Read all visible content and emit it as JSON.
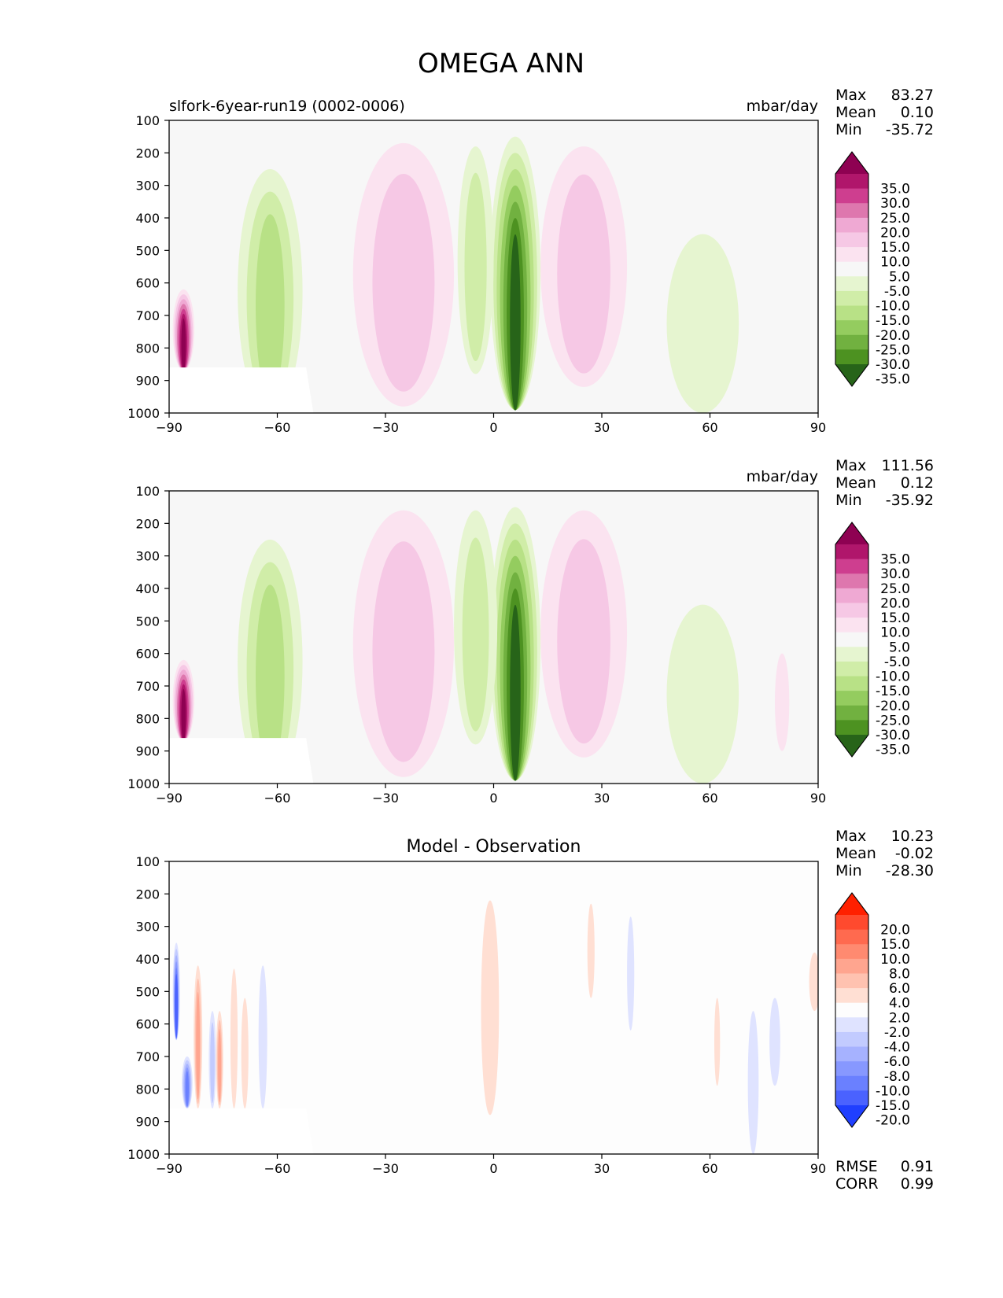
{
  "figure_title": "OMEGA ANN",
  "stat_labels": {
    "max": "Max",
    "mean": "Mean",
    "min": "Min",
    "rmse": "RMSE",
    "corr": "CORR"
  },
  "chart_data": [
    {
      "type": "heatmap",
      "panel": "model",
      "title": "",
      "left_title": "slfork-6year-run19 (0002-0006)",
      "units": "mbar/day",
      "xlabel": "",
      "ylabel": "",
      "xlim": [
        -90,
        90
      ],
      "ylim": [
        1000,
        100
      ],
      "xticks": [
        "−90",
        "−60",
        "−30",
        "0",
        "30",
        "60",
        "90"
      ],
      "xtick_values": [
        -90,
        -60,
        -30,
        0,
        30,
        60,
        90
      ],
      "yticks": [
        "100",
        "200",
        "300",
        "400",
        "500",
        "600",
        "700",
        "800",
        "900",
        "1000"
      ],
      "ytick_values": [
        100,
        200,
        300,
        400,
        500,
        600,
        700,
        800,
        900,
        1000
      ],
      "stats": {
        "max": "83.27",
        "mean": "0.10",
        "min": "-35.72"
      },
      "colorbar": {
        "labels": [
          "35.0",
          "30.0",
          "25.0",
          "20.0",
          "15.0",
          "10.0",
          "5.0",
          "-5.0",
          "-10.0",
          "-15.0",
          "-20.0",
          "-25.0",
          "-30.0",
          "-35.0"
        ],
        "colors": [
          "#8e0152",
          "#b0166b",
          "#ce3e8f",
          "#de77ae",
          "#efa9d3",
          "#f6c8e5",
          "#fbe3f0",
          "#f7f7f7",
          "#e6f5d0",
          "#d0eda8",
          "#b8e186",
          "#94cc5f",
          "#71b140",
          "#4d9221",
          "#276419"
        ]
      },
      "features": [
        {
          "lat": 6,
          "plev": 700,
          "value": -35,
          "lat_halfwidth": 7,
          "plev_top": 150,
          "plev_bottom": 990
        },
        {
          "lat": -25,
          "plev": 600,
          "value": 12,
          "lat_halfwidth": 14,
          "plev_top": 170,
          "plev_bottom": 980
        },
        {
          "lat": 25,
          "plev": 600,
          "value": 10,
          "lat_halfwidth": 12,
          "plev_top": 180,
          "plev_bottom": 920
        },
        {
          "lat": -62,
          "plev": 650,
          "value": -18,
          "lat_halfwidth": 9,
          "plev_top": 250,
          "plev_bottom": 1000
        },
        {
          "lat": -5,
          "plev": 650,
          "value": -12,
          "lat_halfwidth": 5,
          "plev_top": 180,
          "plev_bottom": 880
        },
        {
          "lat": -86,
          "plev": 800,
          "value": 35,
          "lat_halfwidth": 3,
          "plev_top": 620,
          "plev_bottom": 870
        },
        {
          "lat": 58,
          "plev": 800,
          "value": -7,
          "lat_halfwidth": 10,
          "plev_top": 450,
          "plev_bottom": 1000
        }
      ]
    },
    {
      "type": "heatmap",
      "panel": "observation",
      "title": "",
      "left_title": "",
      "units": "mbar/day",
      "xlabel": "",
      "ylabel": "",
      "xlim": [
        -90,
        90
      ],
      "ylim": [
        1000,
        100
      ],
      "xticks": [
        "−90",
        "−60",
        "−30",
        "0",
        "30",
        "60",
        "90"
      ],
      "xtick_values": [
        -90,
        -60,
        -30,
        0,
        30,
        60,
        90
      ],
      "yticks": [
        "100",
        "200",
        "300",
        "400",
        "500",
        "600",
        "700",
        "800",
        "900",
        "1000"
      ],
      "ytick_values": [
        100,
        200,
        300,
        400,
        500,
        600,
        700,
        800,
        900,
        1000
      ],
      "stats": {
        "max": "111.56",
        "mean": "0.12",
        "min": "-35.92"
      },
      "colorbar": {
        "labels": [
          "35.0",
          "30.0",
          "25.0",
          "20.0",
          "15.0",
          "10.0",
          "5.0",
          "-5.0",
          "-10.0",
          "-15.0",
          "-20.0",
          "-25.0",
          "-30.0",
          "-35.0"
        ],
        "colors": [
          "#8e0152",
          "#b0166b",
          "#ce3e8f",
          "#de77ae",
          "#efa9d3",
          "#f6c8e5",
          "#fbe3f0",
          "#f7f7f7",
          "#e6f5d0",
          "#d0eda8",
          "#b8e186",
          "#94cc5f",
          "#71b140",
          "#4d9221",
          "#276419"
        ]
      },
      "features": [
        {
          "lat": 6,
          "plev": 700,
          "value": -35,
          "lat_halfwidth": 7,
          "plev_top": 150,
          "plev_bottom": 990
        },
        {
          "lat": -25,
          "plev": 600,
          "value": 12,
          "lat_halfwidth": 14,
          "plev_top": 160,
          "plev_bottom": 980
        },
        {
          "lat": 25,
          "plev": 600,
          "value": 10,
          "lat_halfwidth": 12,
          "plev_top": 160,
          "plev_bottom": 920
        },
        {
          "lat": -62,
          "plev": 650,
          "value": -18,
          "lat_halfwidth": 9,
          "plev_top": 250,
          "plev_bottom": 1000
        },
        {
          "lat": -5,
          "plev": 600,
          "value": -12,
          "lat_halfwidth": 6,
          "plev_top": 160,
          "plev_bottom": 880
        },
        {
          "lat": -86,
          "plev": 800,
          "value": 35,
          "lat_halfwidth": 3,
          "plev_top": 620,
          "plev_bottom": 870
        },
        {
          "lat": 58,
          "plev": 800,
          "value": -7,
          "lat_halfwidth": 10,
          "plev_top": 450,
          "plev_bottom": 1000
        },
        {
          "lat": 80,
          "plev": 750,
          "value": 7,
          "lat_halfwidth": 2,
          "plev_top": 600,
          "plev_bottom": 900
        }
      ]
    },
    {
      "type": "heatmap",
      "panel": "difference",
      "title": "Model - Observation",
      "left_title": "",
      "units": "",
      "xlabel": "",
      "ylabel": "",
      "xlim": [
        -90,
        90
      ],
      "ylim": [
        1000,
        100
      ],
      "xticks": [
        "−90",
        "−60",
        "−30",
        "0",
        "30",
        "60",
        "90"
      ],
      "xtick_values": [
        -90,
        -60,
        -30,
        0,
        30,
        60,
        90
      ],
      "yticks": [
        "100",
        "200",
        "300",
        "400",
        "500",
        "600",
        "700",
        "800",
        "900",
        "1000"
      ],
      "ytick_values": [
        100,
        200,
        300,
        400,
        500,
        600,
        700,
        800,
        900,
        1000
      ],
      "stats": {
        "max": "10.23",
        "mean": "-0.02",
        "min": "-28.30"
      },
      "metrics": {
        "rmse": "0.91",
        "corr": "0.99"
      },
      "colorbar": {
        "labels": [
          "20.0",
          "15.0",
          "10.0",
          "8.0",
          "6.0",
          "4.0",
          "2.0",
          "-2.0",
          "-4.0",
          "-6.0",
          "-8.0",
          "-10.0",
          "-15.0",
          "-20.0"
        ],
        "colors": [
          "#ff2000",
          "#ff4a2e",
          "#ff6a4f",
          "#ff8a70",
          "#ffa58f",
          "#ffc2b0",
          "#ffdfd3",
          "#fdfdfd",
          "#dfe3ff",
          "#c2cbff",
          "#a6b2ff",
          "#8798ff",
          "#6a80ff",
          "#4a62ff",
          "#1f3fff"
        ]
      },
      "features": [
        {
          "lat": -1,
          "plev": 550,
          "value": 3,
          "lat_halfwidth": 2.5,
          "plev_top": 220,
          "plev_bottom": 880
        },
        {
          "lat": 27,
          "plev": 370,
          "value": 3,
          "lat_halfwidth": 1,
          "plev_top": 230,
          "plev_bottom": 520
        },
        {
          "lat": 38,
          "plev": 430,
          "value": -3,
          "lat_halfwidth": 1,
          "plev_top": 270,
          "plev_bottom": 620
        },
        {
          "lat": 72,
          "plev": 780,
          "value": -3,
          "lat_halfwidth": 1.5,
          "plev_top": 560,
          "plev_bottom": 1000
        },
        {
          "lat": 78,
          "plev": 650,
          "value": -3,
          "lat_halfwidth": 1.5,
          "plev_top": 520,
          "plev_bottom": 790
        },
        {
          "lat": 62,
          "plev": 650,
          "value": 3,
          "lat_halfwidth": 0.8,
          "plev_top": 520,
          "plev_bottom": 790
        },
        {
          "lat": 89,
          "plev": 480,
          "value": 3,
          "lat_halfwidth": 1.5,
          "plev_top": 380,
          "plev_bottom": 560
        },
        {
          "lat": -88,
          "plev": 500,
          "value": -18,
          "lat_halfwidth": 1,
          "plev_top": 350,
          "plev_bottom": 650
        },
        {
          "lat": -85,
          "plev": 780,
          "value": -12,
          "lat_halfwidth": 1.5,
          "plev_top": 700,
          "plev_bottom": 860
        },
        {
          "lat": -82,
          "plev": 600,
          "value": 7,
          "lat_halfwidth": 1.2,
          "plev_top": 420,
          "plev_bottom": 860
        },
        {
          "lat": -78,
          "plev": 720,
          "value": -4,
          "lat_halfwidth": 1,
          "plev_top": 560,
          "plev_bottom": 860
        },
        {
          "lat": -76,
          "plev": 750,
          "value": 7,
          "lat_halfwidth": 1,
          "plev_top": 560,
          "plev_bottom": 860
        },
        {
          "lat": -72,
          "plev": 650,
          "value": 3,
          "lat_halfwidth": 1,
          "plev_top": 430,
          "plev_bottom": 860
        },
        {
          "lat": -69,
          "plev": 700,
          "value": 3,
          "lat_halfwidth": 1,
          "plev_top": 520,
          "plev_bottom": 860
        },
        {
          "lat": -64,
          "plev": 620,
          "value": -3,
          "lat_halfwidth": 1.2,
          "plev_top": 420,
          "plev_bottom": 860
        }
      ]
    }
  ]
}
